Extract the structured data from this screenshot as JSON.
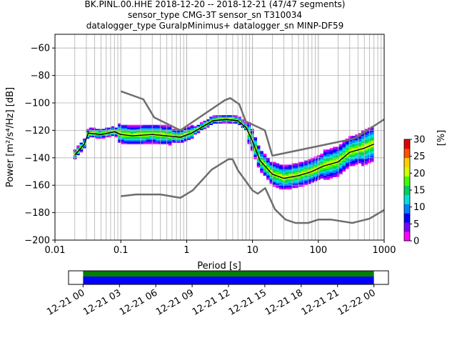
{
  "chart_data": {
    "type": "heatmap",
    "title_lines": [
      "BK.PINL.00.HHE   2018-12-20 -- 2018-12-21  (47/47 segments)",
      "sensor_type CMG-3T sensor_sn T310034",
      "datalogger_type GuralpMinimus+ datalogger_sn MINP-DF59"
    ],
    "xlabel": "Period [s]",
    "ylabel": "Power [m²/s⁴/Hz] [dB]",
    "x_scale": "log",
    "xlim": [
      0.01,
      1000
    ],
    "ylim": [
      -200,
      -50
    ],
    "x_ticks": [
      {
        "value": 0.01,
        "label": "0.01"
      },
      {
        "value": 0.1,
        "label": "0.1"
      },
      {
        "value": 1,
        "label": "1"
      },
      {
        "value": 10,
        "label": "10"
      },
      {
        "value": 100,
        "label": "100"
      },
      {
        "value": 1000,
        "label": "1000"
      }
    ],
    "y_ticks": [
      {
        "value": -60,
        "label": "−60"
      },
      {
        "value": -80,
        "label": "−80"
      },
      {
        "value": -100,
        "label": "−100"
      },
      {
        "value": -120,
        "label": "−120"
      },
      {
        "value": -140,
        "label": "−140"
      },
      {
        "value": -160,
        "label": "−160"
      },
      {
        "value": -180,
        "label": "−180"
      },
      {
        "value": -200,
        "label": "−200"
      }
    ],
    "grid": true,
    "colorbar": {
      "label": "[%]",
      "range": [
        0,
        30
      ],
      "ticks": [
        {
          "value": 0,
          "label": "0"
        },
        {
          "value": 5,
          "label": "5"
        },
        {
          "value": 10,
          "label": "10"
        },
        {
          "value": 15,
          "label": "15"
        },
        {
          "value": 20,
          "label": "20"
        },
        {
          "value": 25,
          "label": "25"
        },
        {
          "value": 30,
          "label": "30"
        }
      ],
      "colors": [
        "#ff00ff",
        "#7a00ff",
        "#0000ff",
        "#0080ff",
        "#00e0e0",
        "#00d060",
        "#40ff00",
        "#d0ff00",
        "#ffd000",
        "#ff5000",
        "#e00000"
      ]
    },
    "noise_model_high": {
      "x": [
        0.1,
        0.22,
        0.32,
        0.8,
        3.8,
        4.6,
        6.3,
        7.9,
        15.4,
        20,
        354.8,
        1000
      ],
      "y": [
        -91.5,
        -97.4,
        -110.5,
        -120,
        -98,
        -96.5,
        -101,
        -113.5,
        -120,
        -138.5,
        -126,
        -112
      ]
    },
    "noise_model_low": {
      "x": [
        0.1,
        0.17,
        0.4,
        0.8,
        1.24,
        2.4,
        4.3,
        5,
        6,
        10,
        12,
        15.6,
        21.9,
        31.6,
        45,
        70,
        101,
        154,
        328,
        600,
        1000
      ],
      "y": [
        -168,
        -166.7,
        -166.7,
        -169.2,
        -163.7,
        -148.6,
        -141.1,
        -141.1,
        -149,
        -163.8,
        -166.2,
        -162.1,
        -177.5,
        -185,
        -187.5,
        -187.5,
        -185,
        -185,
        -187.5,
        -184.4,
        -178
      ]
    },
    "mode_line": {
      "x": [
        0.02,
        0.028,
        0.032,
        0.05,
        0.08,
        0.1,
        0.15,
        0.3,
        0.5,
        0.8,
        1.2,
        1.8,
        2.5,
        4,
        6,
        8,
        10,
        13,
        20,
        30,
        50,
        80,
        120,
        200,
        300,
        500,
        700
      ],
      "y": [
        -138,
        -130,
        -122,
        -123,
        -121,
        -123,
        -124,
        -123,
        -124,
        -125,
        -122,
        -117,
        -113,
        -112,
        -113,
        -118,
        -128,
        -142,
        -152,
        -155,
        -153,
        -150,
        -146,
        -143,
        -136,
        -133,
        -130
      ]
    },
    "time_axis": {
      "ticks": [
        {
          "value": 0,
          "label": "12-21 00"
        },
        {
          "value": 3,
          "label": "12-21 03"
        },
        {
          "value": 6,
          "label": "12-21 06"
        },
        {
          "value": 9,
          "label": "12-21 09"
        },
        {
          "value": 12,
          "label": "12-21 12"
        },
        {
          "value": 15,
          "label": "12-21 15"
        },
        {
          "value": 18,
          "label": "12-21 18"
        },
        {
          "value": 21,
          "label": "12-21 21"
        },
        {
          "value": 24,
          "label": "12-22 00"
        }
      ],
      "xlim": [
        -1.2,
        25.2
      ],
      "coverage": [
        0,
        24
      ],
      "colors": {
        "data": "#0000ff",
        "coverage": "#008000"
      }
    }
  }
}
